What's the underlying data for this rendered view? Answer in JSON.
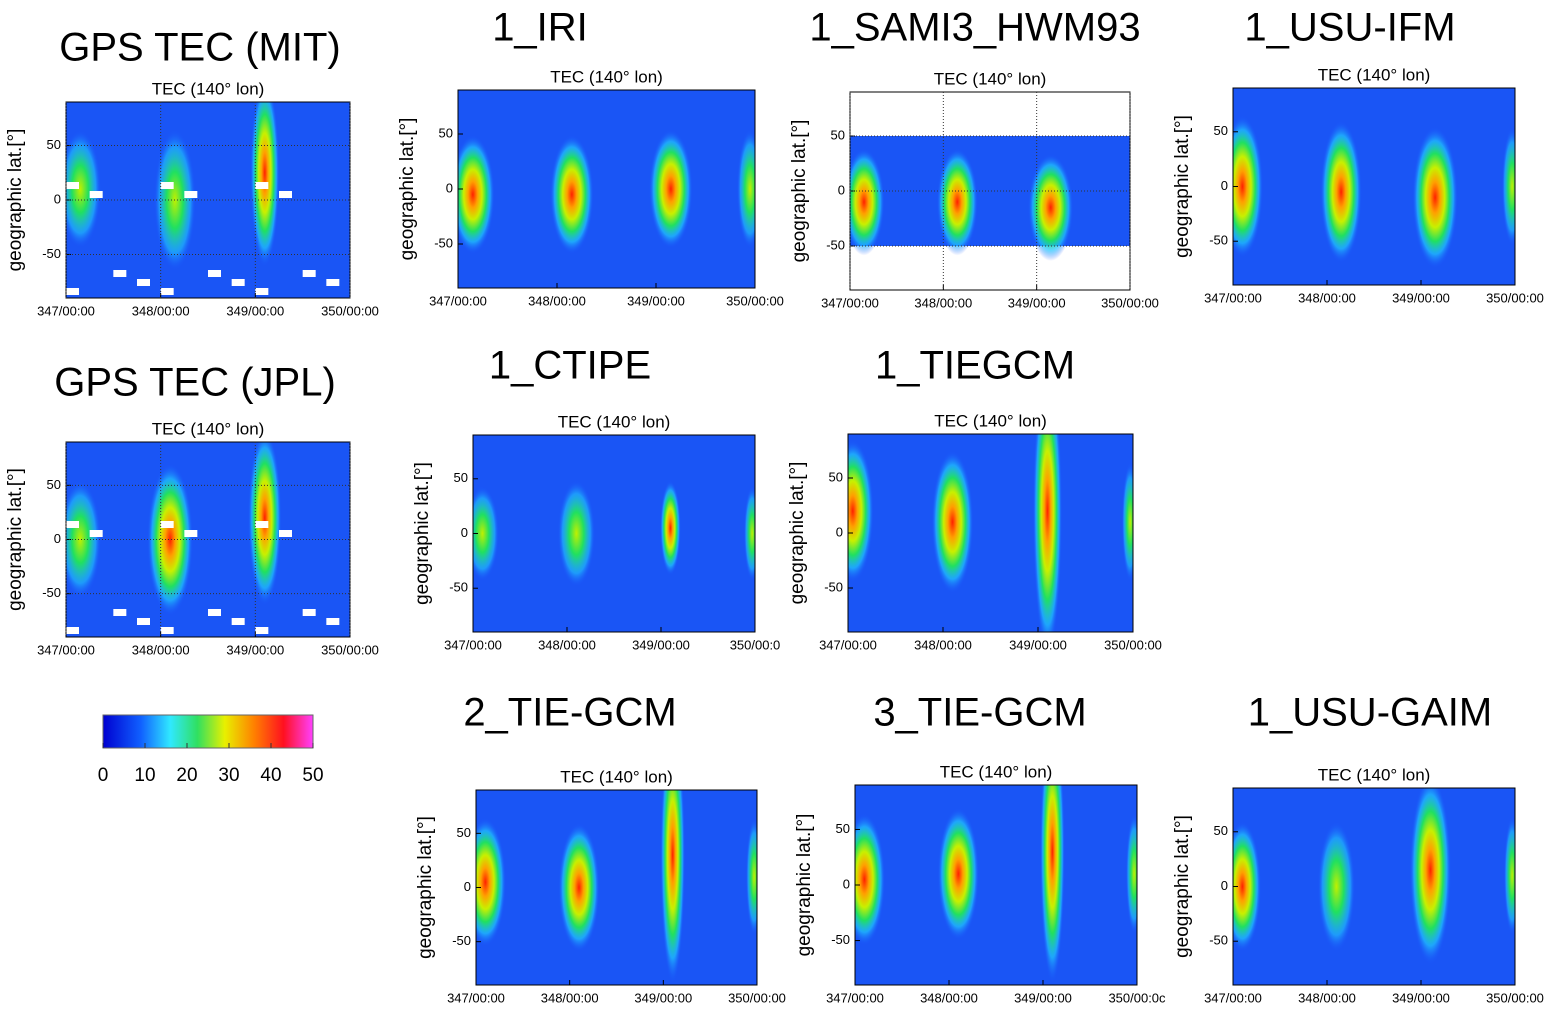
{
  "chart_data": [
    {
      "type": "heatmap",
      "title": "GPS TEC (MIT)",
      "subtitle": "TEC (140° lon)",
      "ylabel": "geographic lat.[°]",
      "xlim": [
        347,
        350
      ],
      "ylim": [
        -90,
        90
      ],
      "grid": true,
      "xticks": [
        {
          "value": 347,
          "label": "347/00:00"
        },
        {
          "value": 348,
          "label": "348/00:00"
        },
        {
          "value": 349,
          "label": "349/00:00"
        },
        {
          "value": 350,
          "label": "350/00:00"
        }
      ],
      "yticks": [
        -50,
        0,
        50
      ]
    },
    {
      "type": "heatmap",
      "title": "1_IRI",
      "subtitle": "TEC (140° lon)",
      "ylabel": "geographic lat.[°]",
      "xlim": [
        347,
        350
      ],
      "ylim": [
        -90,
        90
      ],
      "grid": false,
      "xticks": [
        {
          "value": 347,
          "label": "347/00:00"
        },
        {
          "value": 348,
          "label": "348/00:00"
        },
        {
          "value": 349,
          "label": "349/00:00"
        },
        {
          "value": 350,
          "label": "350/00:00"
        }
      ],
      "yticks": [
        -50,
        0,
        50
      ]
    },
    {
      "type": "heatmap",
      "title": "1_SAMI3_HWM93",
      "subtitle": "TEC (140° lon)",
      "ylabel": "geographic lat.[°]",
      "xlim": [
        347,
        350
      ],
      "ylim": [
        -90,
        90
      ],
      "grid": true,
      "xticks": [
        {
          "value": 347,
          "label": "347/00:00"
        },
        {
          "value": 348,
          "label": "348/00:00"
        },
        {
          "value": 349,
          "label": "349/00:00"
        },
        {
          "value": 350,
          "label": "350/00:00"
        }
      ],
      "yticks": [
        -50,
        0,
        50
      ]
    },
    {
      "type": "heatmap",
      "title": "1_USU-IFM",
      "subtitle": "TEC (140° lon)",
      "ylabel": "geographic lat.[°]",
      "xlim": [
        347,
        350
      ],
      "ylim": [
        -90,
        90
      ],
      "grid": false,
      "xticks": [
        {
          "value": 347,
          "label": "347/00:00"
        },
        {
          "value": 348,
          "label": "348/00:00"
        },
        {
          "value": 349,
          "label": "349/00:00"
        },
        {
          "value": 350,
          "label": "350/00:00"
        }
      ],
      "yticks": [
        -50,
        0,
        50
      ]
    },
    {
      "type": "heatmap",
      "title": "GPS TEC (JPL)",
      "subtitle": "TEC (140° lon)",
      "ylabel": "geographic lat.[°]",
      "xlim": [
        347,
        350
      ],
      "ylim": [
        -90,
        90
      ],
      "grid": true,
      "xticks": [
        {
          "value": 347,
          "label": "347/00:00"
        },
        {
          "value": 348,
          "label": "348/00:00"
        },
        {
          "value": 349,
          "label": "349/00:00"
        },
        {
          "value": 350,
          "label": "350/00:00"
        }
      ],
      "yticks": [
        -50,
        0,
        50
      ]
    },
    {
      "type": "heatmap",
      "title": "1_CTIPE",
      "subtitle": "TEC (140° lon)",
      "ylabel": "geographic lat.[°]",
      "xlim": [
        347,
        350
      ],
      "ylim": [
        -90,
        90
      ],
      "grid": false,
      "xticks": [
        {
          "value": 347,
          "label": "347/00:00"
        },
        {
          "value": 348,
          "label": "348/00:00"
        },
        {
          "value": 349,
          "label": "349/00:00"
        },
        {
          "value": 350,
          "label": "350/00:0"
        }
      ],
      "yticks": [
        -50,
        0,
        50
      ]
    },
    {
      "type": "heatmap",
      "title": "1_TIEGCM",
      "subtitle": "TEC (140° lon)",
      "ylabel": "geographic lat.[°]",
      "xlim": [
        347,
        350
      ],
      "ylim": [
        -90,
        90
      ],
      "grid": false,
      "xticks": [
        {
          "value": 347,
          "label": "347/00:00"
        },
        {
          "value": 348,
          "label": "348/00:00"
        },
        {
          "value": 349,
          "label": "349/00:00"
        },
        {
          "value": 350,
          "label": "350/00:00"
        }
      ],
      "yticks": [
        -50,
        0,
        50
      ]
    },
    {
      "type": "colorbar",
      "xlim": [
        0,
        50
      ],
      "xticks": [
        0,
        10,
        20,
        30,
        40,
        50
      ]
    },
    {
      "type": "heatmap",
      "title": "2_TIE-GCM",
      "subtitle": "TEC (140° lon)",
      "ylabel": "geographic lat.[°]",
      "xlim": [
        347,
        350
      ],
      "ylim": [
        -90,
        90
      ],
      "grid": false,
      "xticks": [
        {
          "value": 347,
          "label": "347/00:00"
        },
        {
          "value": 348,
          "label": "348/00:00"
        },
        {
          "value": 349,
          "label": "349/00:00"
        },
        {
          "value": 350,
          "label": "350/00:00"
        }
      ],
      "yticks": [
        -50,
        0,
        50
      ]
    },
    {
      "type": "heatmap",
      "title": "3_TIE-GCM",
      "subtitle": "TEC (140° lon)",
      "ylabel": "geographic lat.[°]",
      "xlim": [
        347,
        350
      ],
      "ylim": [
        -90,
        90
      ],
      "grid": false,
      "xticks": [
        {
          "value": 347,
          "label": "347/00:00"
        },
        {
          "value": 348,
          "label": "348/00:00"
        },
        {
          "value": 349,
          "label": "349/00:00"
        },
        {
          "value": 350,
          "label": "350/00:0c"
        }
      ],
      "yticks": [
        -50,
        0,
        50
      ]
    },
    {
      "type": "heatmap",
      "title": "1_USU-GAIM",
      "subtitle": "TEC (140° lon)",
      "ylabel": "geographic lat.[°]",
      "xlim": [
        347,
        350
      ],
      "ylim": [
        -90,
        90
      ],
      "grid": false,
      "xticks": [
        {
          "value": 347,
          "label": "347/00:00"
        },
        {
          "value": 348,
          "label": "348/00:00"
        },
        {
          "value": 349,
          "label": "349/00:00"
        },
        {
          "value": 350,
          "label": "350/00:00"
        }
      ],
      "yticks": [
        -50,
        0,
        50
      ]
    }
  ]
}
